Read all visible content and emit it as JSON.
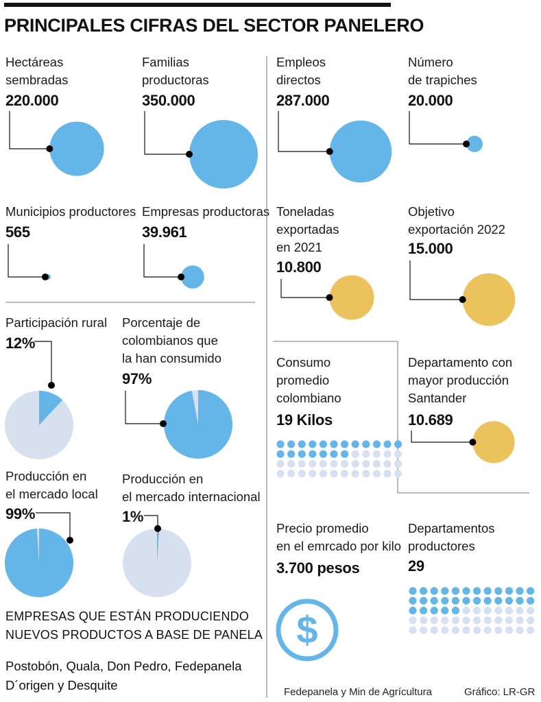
{
  "title": "PRINCIPALES CIFRAS DEL SECTOR PANELERO",
  "colors": {
    "blue": "#64b5e8",
    "yellow": "#ebc25b",
    "pale": "#d6e0ef",
    "line": "#111111"
  },
  "chart_data": [
    {
      "type": "bubble",
      "label": "Hectáreas\nsembradas",
      "value_text": "220.000",
      "value": 220000
    },
    {
      "type": "bubble",
      "label": "Familias\nproductoras",
      "value_text": "350.000",
      "value": 350000
    },
    {
      "type": "bubble",
      "label": "Empleos\ndirectos",
      "value_text": "287.000",
      "value": 287000
    },
    {
      "type": "bubble",
      "label": "Número\nde trapiches",
      "value_text": "20.000",
      "value": 20000
    },
    {
      "type": "bubble",
      "label": "Municipios productores",
      "value_text": "565",
      "value": 565
    },
    {
      "type": "bubble",
      "label": "Empresas productoras",
      "value_text": "39.961",
      "value": 39961
    },
    {
      "type": "bubble",
      "label": "Toneladas\nexportadas\nen 2021",
      "value_text": "10.800",
      "value": 10800
    },
    {
      "type": "bubble",
      "label": "Objetivo\nexportación 2022",
      "value_text": "15.000",
      "value": 15000
    },
    {
      "type": "bubble",
      "label": "Departamento con\nmayor producción\nSantander",
      "value_text": "10.689",
      "value": 10689
    },
    {
      "type": "pie",
      "label": "Participación rural",
      "value_text": "12%",
      "value": 12
    },
    {
      "type": "pie",
      "label": "Porcentaje de\ncolombianos que\nla han consumido",
      "value_text": "97%",
      "value": 97
    },
    {
      "type": "pie",
      "label": "Producción en\nel mercado local",
      "value_text": "99%",
      "value": 99
    },
    {
      "type": "pie",
      "label": "Producción en\nel mercado internacional",
      "value_text": "1%",
      "value": 1
    },
    {
      "type": "dots",
      "label": "Consumo\npromedio\ncolombiano",
      "value_text": "19 Kilos",
      "value": 19,
      "total": 48
    },
    {
      "type": "dots",
      "label": "Departamentos\nproductores",
      "value_text": "29",
      "value": 29,
      "total": 60
    },
    {
      "type": "icon",
      "label": "Precio promedio\nen el emrcado por kilo",
      "value_text": "3.700 pesos",
      "icon": "dollar-icon"
    }
  ],
  "section": {
    "heading": "EMPRESAS QUE ESTÁN PRODUCIENDO\nNUEVOS PRODUCTOS A BASE DE PANELA",
    "text": "Postobón, Quala, Don Pedro, Fedepanela\nD´origen y Desquite"
  },
  "footer": {
    "source": "Fedepanela y Min de Agrícultura",
    "credit": "Gráfico: LR-GR"
  }
}
